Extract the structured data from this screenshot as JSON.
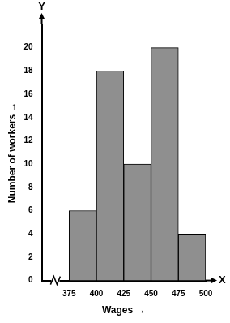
{
  "chart_data": {
    "type": "histogram",
    "x_label": "Wages →",
    "y_label": "Number of workers →",
    "bins": [
      375,
      400,
      425,
      450,
      475,
      500
    ],
    "values": [
      6,
      18,
      10,
      20,
      4
    ],
    "color": "#8f8f8f",
    "xlim": [
      350,
      500
    ],
    "xticks": [
      375,
      400,
      425,
      450,
      475,
      500
    ],
    "ylim": [
      0,
      22
    ],
    "yticks": [
      0,
      2,
      4,
      6,
      8,
      10,
      12,
      14,
      16,
      18,
      20
    ],
    "grid": false,
    "annotations": [
      "X",
      "Y"
    ]
  }
}
